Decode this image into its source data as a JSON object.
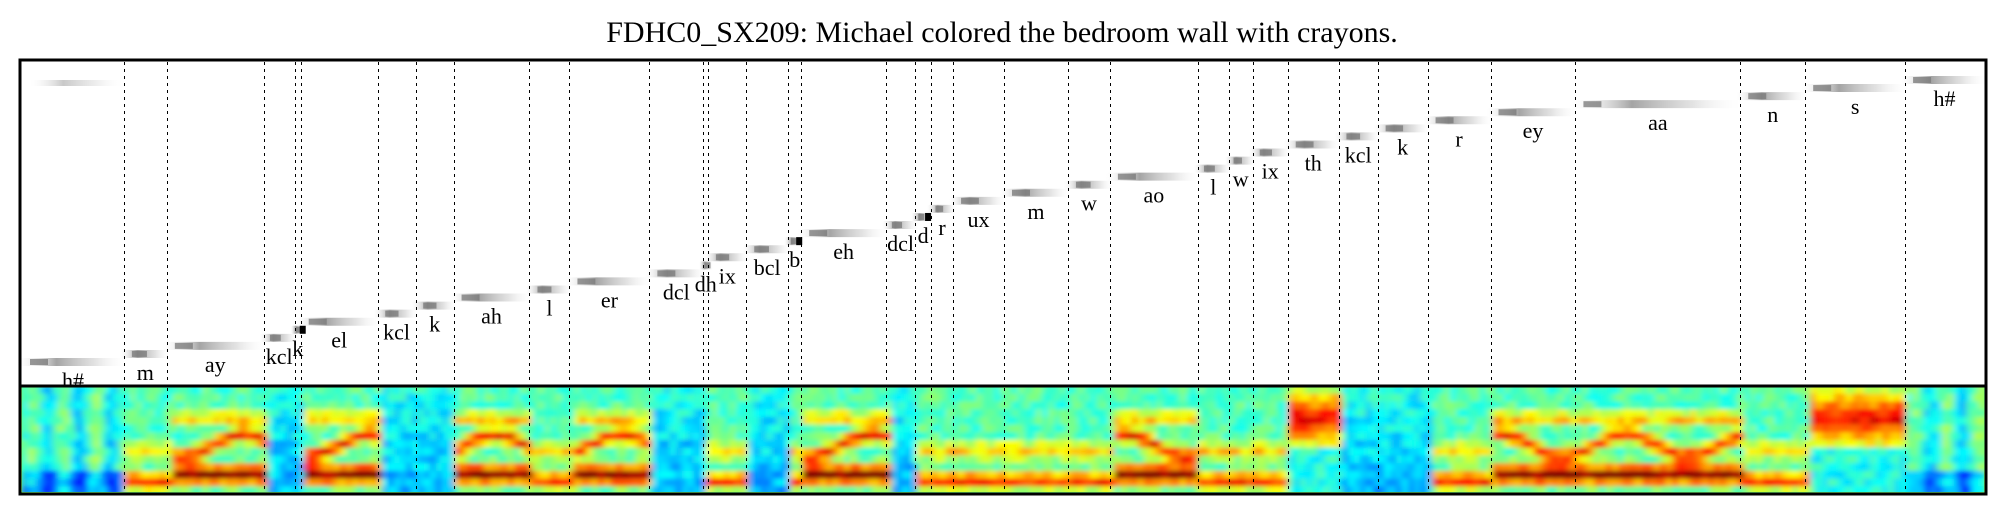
{
  "title": "FDHC0_SX209: Michael colored the bedroom wall with crayons.",
  "colormap": {
    "name": "jet",
    "stops": [
      "#00008f",
      "#0000ff",
      "#007fff",
      "#00ffff",
      "#7fff7f",
      "#ffff00",
      "#ff7f00",
      "#ff0000",
      "#7f0000"
    ]
  },
  "segments": [
    {
      "label": "h#",
      "start": 0,
      "end": 102
    },
    {
      "label": "m",
      "start": 102,
      "end": 145
    },
    {
      "label": "ay",
      "start": 145,
      "end": 242
    },
    {
      "label": "kcl",
      "start": 242,
      "end": 273
    },
    {
      "label": "k",
      "start": 273,
      "end": 279
    },
    {
      "label": "el",
      "start": 279,
      "end": 356
    },
    {
      "label": "kcl",
      "start": 356,
      "end": 394
    },
    {
      "label": "k",
      "start": 394,
      "end": 432
    },
    {
      "label": "ah",
      "start": 432,
      "end": 508
    },
    {
      "label": "l",
      "start": 508,
      "end": 548
    },
    {
      "label": "er",
      "start": 548,
      "end": 628
    },
    {
      "label": "dcl",
      "start": 628,
      "end": 682
    },
    {
      "label": "dh",
      "start": 682,
      "end": 687
    },
    {
      "label": "ix",
      "start": 687,
      "end": 725
    },
    {
      "label": "bcl",
      "start": 725,
      "end": 767
    },
    {
      "label": "b",
      "start": 767,
      "end": 780
    },
    {
      "label": "eh",
      "start": 780,
      "end": 865
    },
    {
      "label": "dcl",
      "start": 865,
      "end": 894
    },
    {
      "label": "d",
      "start": 894,
      "end": 910
    },
    {
      "label": "r",
      "start": 910,
      "end": 932
    },
    {
      "label": "ux",
      "start": 932,
      "end": 983
    },
    {
      "label": "m",
      "start": 983,
      "end": 1047
    },
    {
      "label": "w",
      "start": 1047,
      "end": 1089
    },
    {
      "label": "ao",
      "start": 1089,
      "end": 1177
    },
    {
      "label": "l",
      "start": 1177,
      "end": 1208
    },
    {
      "label": "w",
      "start": 1208,
      "end": 1232
    },
    {
      "label": "ix",
      "start": 1232,
      "end": 1267
    },
    {
      "label": "th",
      "start": 1267,
      "end": 1318
    },
    {
      "label": "kcl",
      "start": 1318,
      "end": 1357
    },
    {
      "label": "k",
      "start": 1357,
      "end": 1407
    },
    {
      "label": "r",
      "start": 1407,
      "end": 1470
    },
    {
      "label": "ey",
      "start": 1470,
      "end": 1555
    },
    {
      "label": "aa",
      "start": 1555,
      "end": 1720
    },
    {
      "label": "n",
      "start": 1720,
      "end": 1785
    },
    {
      "label": "s",
      "start": 1785,
      "end": 1885
    },
    {
      "label": "h#",
      "start": 1885,
      "end": 1964
    }
  ]
}
